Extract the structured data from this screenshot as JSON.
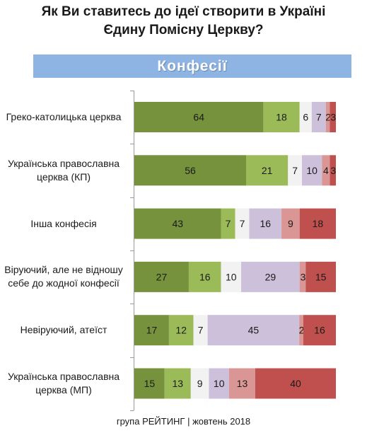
{
  "title_line1": "Як Ви ставитесь до ідеї створити в Україні",
  "title_line2": "Єдину Помісну Церкву?",
  "banner": "Конфесії",
  "footer": "група РЕЙТИНГ | жовтень 2018",
  "colors": [
    "#76923c",
    "#9bbb59",
    "#f2f2f2",
    "#ccc0da",
    "#da9694",
    "#c0504d"
  ],
  "chart_data": {
    "type": "bar",
    "orientation": "horizontal",
    "stacked": true,
    "title": "Як Ви ставитесь до ідеї створити в Україні Єдину Помісну Церкву?",
    "subtitle": "Конфесії",
    "categories": [
      "Греко-католицька церква",
      "Українська православна церква (КП)",
      "Інша конфесія",
      "Віруючий, але не відношу себе до жодної конфесії",
      "Невіруючий, атеїст",
      "Українська православна церква (МП)"
    ],
    "segments": [
      [
        64,
        18,
        6,
        7,
        2,
        3
      ],
      [
        56,
        21,
        7,
        10,
        4,
        3
      ],
      [
        43,
        7,
        7,
        16,
        9,
        18
      ],
      [
        27,
        16,
        10,
        29,
        3,
        15
      ],
      [
        17,
        12,
        7,
        45,
        2,
        16
      ],
      [
        15,
        13,
        9,
        10,
        13,
        40
      ]
    ],
    "segment_labels": [
      [
        "64",
        "18",
        "6",
        "7",
        "2",
        "3"
      ],
      [
        "56",
        "21",
        "7",
        "10",
        "4",
        "3"
      ],
      [
        "43",
        "7",
        "7",
        "16",
        "9",
        "18"
      ],
      [
        "27",
        "16",
        "10",
        "29",
        "3",
        "15"
      ],
      [
        "17",
        "12",
        "7",
        "45",
        "2",
        "16"
      ],
      [
        "15",
        "13",
        "9",
        "10",
        "13",
        "40"
      ]
    ],
    "series_count": 6,
    "grid": false,
    "legend": false
  }
}
